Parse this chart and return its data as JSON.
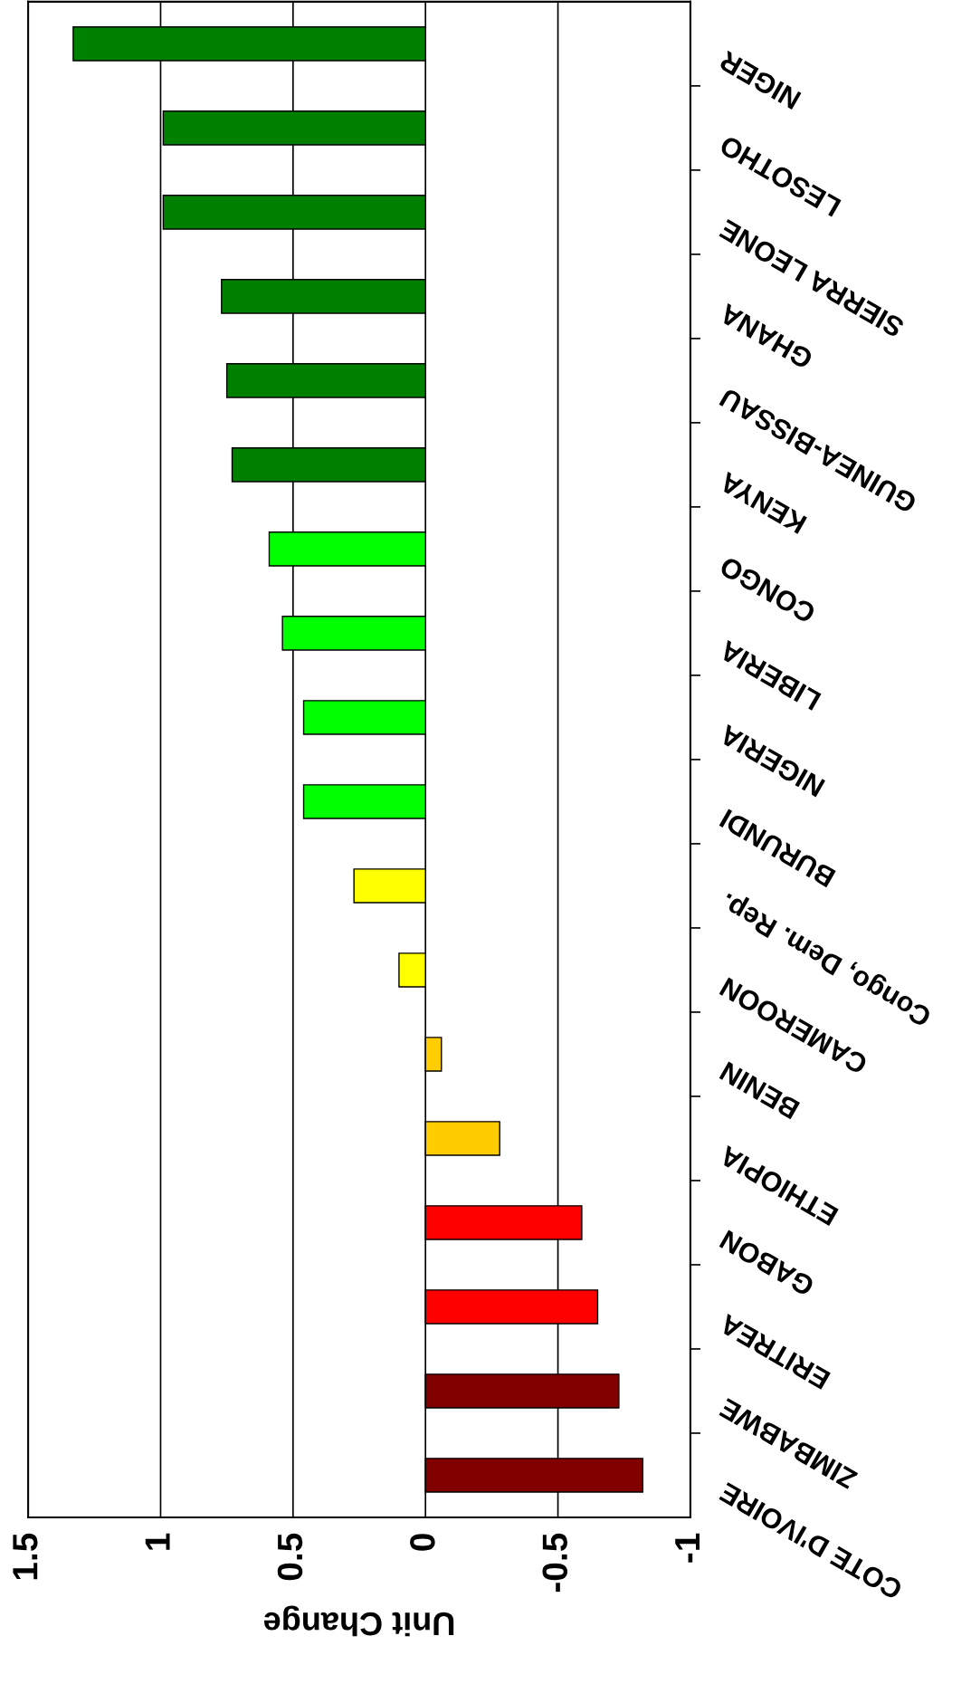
{
  "chart_data": {
    "type": "bar",
    "orientation": "horizontal",
    "xlabel": "Unit Change",
    "categories": [
      "NIGER",
      "LESOTHO",
      "SIERRA LEONE",
      "GHANA",
      "GUINEA-BISSAU",
      "KENYA",
      "CONGO",
      "LIBERIA",
      "NIGERIA",
      "BURUNDI",
      "Congo, Dem. Rep.",
      "CAMEROON",
      "BENIN",
      "ETHIOPIA",
      "GABON",
      "ERITREA",
      "ZIMBABWE",
      "COTE D'IVOIRE"
    ],
    "values": [
      1.33,
      0.99,
      0.99,
      0.77,
      0.75,
      0.73,
      0.59,
      0.54,
      0.46,
      0.46,
      0.27,
      0.1,
      -0.06,
      -0.28,
      -0.59,
      -0.65,
      -0.73,
      -0.82
    ],
    "colors": [
      "#008000",
      "#008000",
      "#008000",
      "#008000",
      "#008000",
      "#008000",
      "#00ff00",
      "#00ff00",
      "#00ff00",
      "#00ff00",
      "#ffff00",
      "#ffff00",
      "#ffcc00",
      "#ffcc00",
      "#ff0000",
      "#ff0000",
      "#800000",
      "#800000"
    ],
    "xlim": [
      1.5,
      -1
    ],
    "xticks": [
      1.5,
      1,
      0.5,
      0,
      -0.5,
      -1
    ],
    "grid": "x"
  }
}
